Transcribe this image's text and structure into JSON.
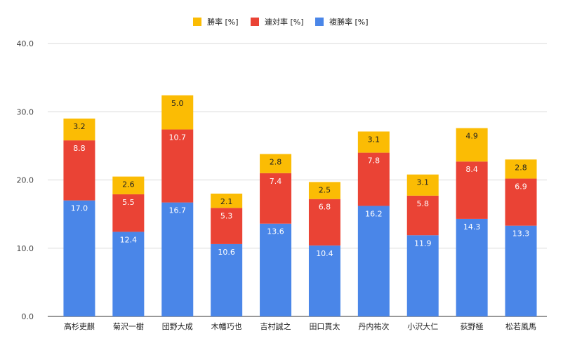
{
  "chart_data": {
    "type": "bar",
    "stacked": true,
    "categories": [
      "高杉吏麒",
      "菊沢一樹",
      "団野大成",
      "木幡巧也",
      "吉村誠之",
      "田口貫太",
      "丹内祐次",
      "小沢大仁",
      "荻野極",
      "松若風馬"
    ],
    "series": [
      {
        "name": "複勝率 [%]",
        "color": "#4a86e8",
        "label_color": "#ffffff",
        "values": [
          17.0,
          12.4,
          16.7,
          10.6,
          13.6,
          10.4,
          16.2,
          11.9,
          14.3,
          13.3
        ]
      },
      {
        "name": "連対率 [%]",
        "color": "#ea4335",
        "label_color": "#ffffff",
        "values": [
          8.8,
          5.5,
          10.7,
          5.3,
          7.4,
          6.8,
          7.8,
          5.8,
          8.4,
          6.9
        ]
      },
      {
        "name": "勝率 [%]",
        "color": "#fbbc04",
        "label_color": "#222222",
        "values": [
          3.2,
          2.6,
          5.0,
          2.1,
          2.8,
          2.5,
          3.1,
          3.1,
          4.9,
          2.8
        ]
      }
    ],
    "legend_order": [
      2,
      1,
      0
    ],
    "legend_position": "top-center",
    "yticks": [
      "0.0",
      "10.0",
      "20.0",
      "30.0",
      "40.0"
    ],
    "ytick_values": [
      0,
      10,
      20,
      30,
      40
    ],
    "ylim": [
      0,
      40
    ],
    "grid": true
  }
}
